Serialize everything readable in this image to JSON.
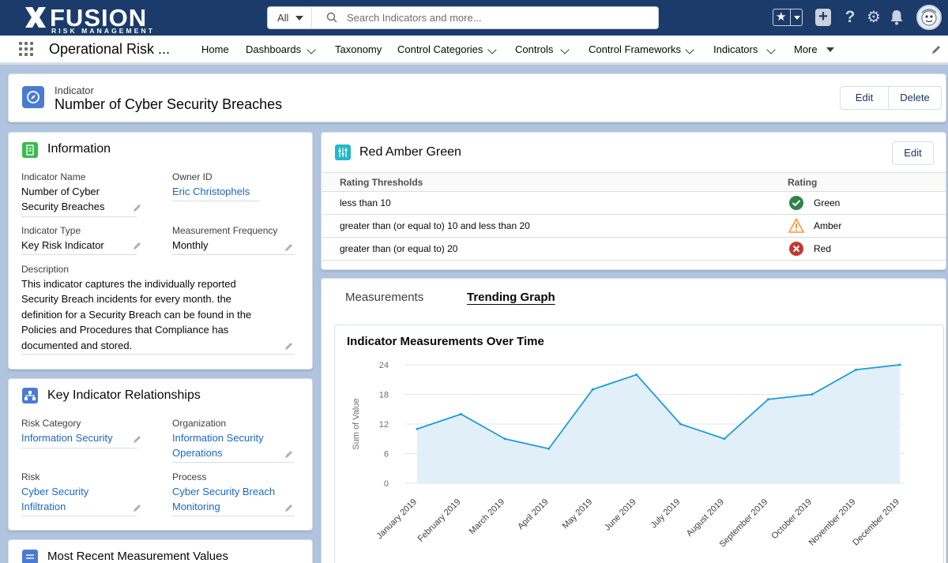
{
  "topbar": {
    "brand": "FUSION",
    "brand_sub": "RISK MANAGEMENT",
    "search_scope": "All",
    "search_placeholder": "Search Indicators and more...",
    "icons": [
      "favorites-star-icon",
      "global-plus-icon",
      "help-icon",
      "setup-gear-icon",
      "notifications-bell-icon",
      "avatar"
    ]
  },
  "nav": {
    "app_name": "Operational Risk ...",
    "items": [
      {
        "label": "Home",
        "dropdown": false
      },
      {
        "label": "Dashboards",
        "dropdown": true
      },
      {
        "label": "Taxonomy",
        "dropdown": false
      },
      {
        "label": "Control Categories",
        "dropdown": true
      },
      {
        "label": "Controls",
        "dropdown": true
      },
      {
        "label": "Control Frameworks",
        "dropdown": true
      },
      {
        "label": "Indicators",
        "dropdown": true
      },
      {
        "label": "More",
        "dropdown": true
      }
    ]
  },
  "record": {
    "type": "Indicator",
    "title": "Number of Cyber Security Breaches",
    "edit_label": "Edit",
    "delete_label": "Delete"
  },
  "information": {
    "title": "Information",
    "indicator_name_label": "Indicator Name",
    "indicator_name_line1": "Number of Cyber",
    "indicator_name_line2": "Security Breaches",
    "owner_label": "Owner ID",
    "owner_value": "Eric Christophels",
    "type_label": "Indicator Type",
    "type_value": "Key Risk Indicator",
    "frequency_label": "Measurement Frequency",
    "frequency_value": "Monthly",
    "description_label": "Description",
    "description_lines": [
      "This indicator captures the individually reported",
      "Security Breach incidents for every month. the",
      "definition for a Security Breach can be found in the",
      "Policies and Procedures that Compliance has",
      "documented and stored."
    ]
  },
  "relationships": {
    "title": "Key Indicator Relationships",
    "risk_category_label": "Risk Category",
    "risk_category_value": "Information Security",
    "organization_label": "Organization",
    "organization_line1": "Information Security",
    "organization_line2": "Operations",
    "risk_label": "Risk",
    "risk_line1": "Cyber Security",
    "risk_line2": "Infiltration",
    "process_label": "Process",
    "process_line1": "Cyber Security Breach",
    "process_line2": "Monitoring"
  },
  "recent": {
    "title": "Most Recent Measurement Values"
  },
  "rag": {
    "title": "Red Amber Green",
    "edit_label": "Edit",
    "col_thresholds": "Rating Thresholds",
    "col_rating": "Rating",
    "rows": [
      {
        "threshold": "less than 10",
        "rating": "Green",
        "icon": "check-circle-icon",
        "color": "#2e844a"
      },
      {
        "threshold": "greater than (or equal to) 10 and less than 20",
        "rating": "Amber",
        "icon": "warning-triangle-icon",
        "color": "#fe9339"
      },
      {
        "threshold": "greater than (or equal to) 20",
        "rating": "Red",
        "icon": "error-circle-icon",
        "color": "#c23934"
      }
    ]
  },
  "tabs": {
    "measurements": "Measurements",
    "trending": "Trending Graph",
    "active": "trending"
  },
  "chart_data": {
    "type": "area",
    "title": "Indicator Measurements Over Time",
    "ylabel": "Sum of Value",
    "xlabel": "",
    "categories": [
      "January 2019",
      "February 2019",
      "March 2019",
      "April 2019",
      "May 2019",
      "June 2019",
      "July 2019",
      "August 2019",
      "September 2019",
      "October 2019",
      "November 2019",
      "December 2019"
    ],
    "values": [
      11,
      14,
      9,
      7,
      19,
      22,
      12,
      9,
      17,
      18,
      23,
      24
    ],
    "yticks": [
      0,
      6,
      12,
      18,
      24
    ],
    "ylim": [
      0,
      24
    ],
    "grid": true,
    "line_color": "#1b9dd8",
    "fill_color": "#e1eff9"
  }
}
